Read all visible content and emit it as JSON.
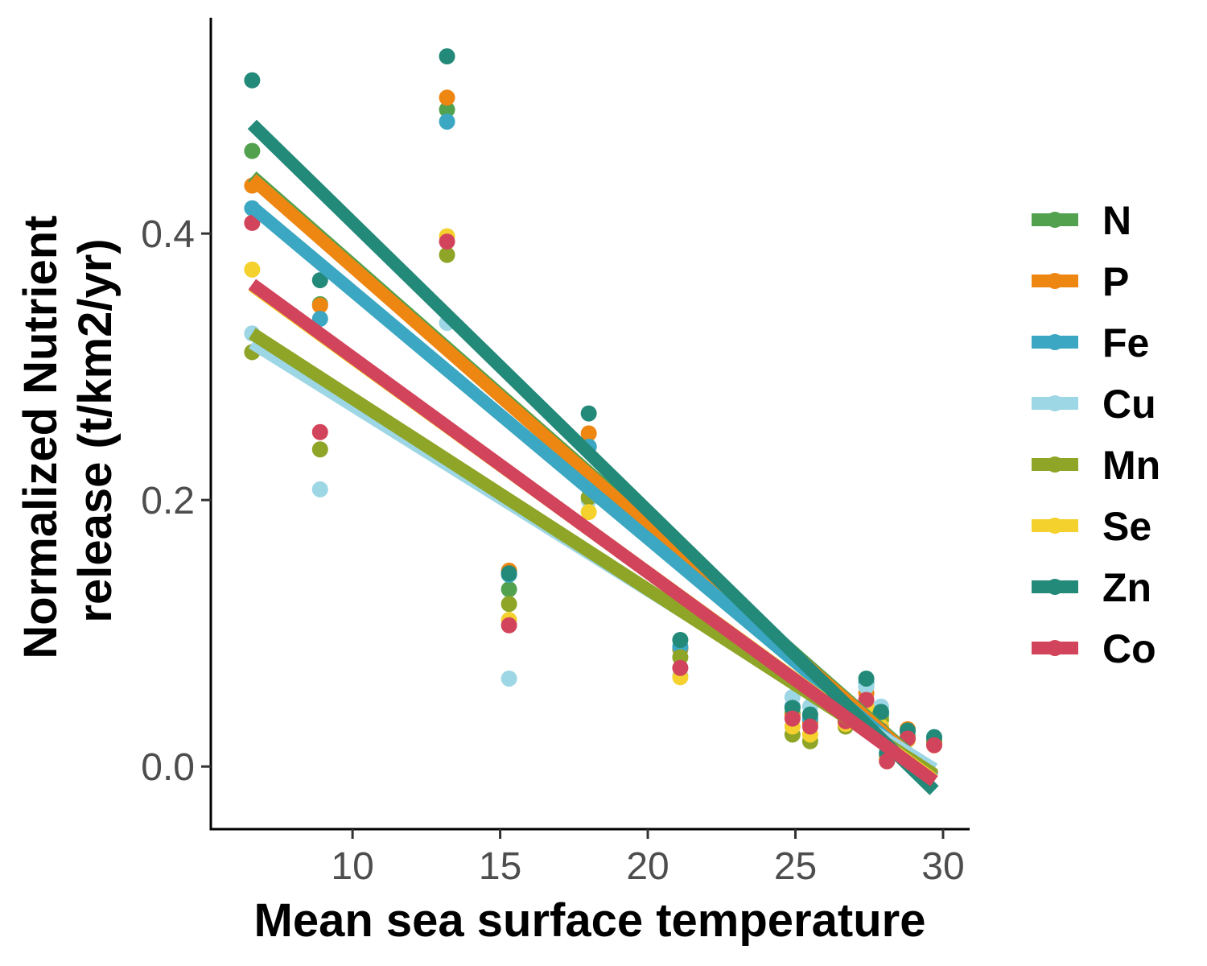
{
  "chart_data": {
    "type": "scatter",
    "title": "",
    "xlabel": "Mean sea surface temperature",
    "ylabel_lines": [
      "Normalized Nutrient",
      "release (t/km2/yr)"
    ],
    "xlim": [
      5.2,
      30.9
    ],
    "ylim": [
      -0.047,
      0.562
    ],
    "xticks": [
      10,
      15,
      20,
      25,
      30
    ],
    "yticks": [
      0.0,
      0.2,
      0.4
    ],
    "ytick_labels": [
      "0.0",
      "0.2",
      "0.4"
    ],
    "grid": false,
    "legend_position": "right",
    "fit_lines": "linear",
    "series": [
      {
        "name": "N",
        "color": "#52A14F",
        "points": [
          [
            6.6,
            0.462
          ],
          [
            8.9,
            0.347
          ],
          [
            13.2,
            0.493
          ],
          [
            15.3,
            0.133
          ],
          [
            18.0,
            0.24
          ],
          [
            21.1,
            0.088
          ],
          [
            24.9,
            0.04
          ],
          [
            25.5,
            0.034
          ],
          [
            26.7,
            0.035
          ],
          [
            27.4,
            0.06
          ],
          [
            27.9,
            0.038
          ],
          [
            28.1,
            0.008
          ],
          [
            28.8,
            0.024
          ],
          [
            29.7,
            0.02
          ]
        ],
        "fit": [
          [
            6.6,
            0.443
          ],
          [
            29.7,
            -0.007
          ]
        ]
      },
      {
        "name": "P",
        "color": "#EE8612",
        "points": [
          [
            6.6,
            0.436
          ],
          [
            8.9,
            0.346
          ],
          [
            13.2,
            0.502
          ],
          [
            15.3,
            0.147
          ],
          [
            18.0,
            0.25
          ],
          [
            21.1,
            0.089
          ],
          [
            24.9,
            0.038
          ],
          [
            25.5,
            0.033
          ],
          [
            26.7,
            0.035
          ],
          [
            27.4,
            0.055
          ],
          [
            27.9,
            0.03
          ],
          [
            28.1,
            0.006
          ],
          [
            28.8,
            0.028
          ],
          [
            29.7,
            0.018
          ]
        ],
        "fit": [
          [
            6.6,
            0.441
          ],
          [
            29.7,
            -0.008
          ]
        ]
      },
      {
        "name": "Fe",
        "color": "#3BA7C2",
        "points": [
          [
            6.6,
            0.419
          ],
          [
            8.9,
            0.336
          ],
          [
            13.2,
            0.484
          ],
          [
            15.3,
            0.144
          ],
          [
            18.0,
            0.24
          ],
          [
            21.1,
            0.09
          ],
          [
            24.9,
            0.045
          ],
          [
            25.5,
            0.036
          ],
          [
            26.7,
            0.045
          ],
          [
            27.4,
            0.063
          ],
          [
            27.9,
            0.04
          ],
          [
            28.1,
            0.01
          ],
          [
            28.8,
            0.026
          ],
          [
            29.7,
            0.022
          ]
        ],
        "fit": [
          [
            6.6,
            0.42
          ],
          [
            29.7,
            -0.009
          ]
        ]
      },
      {
        "name": "Cu",
        "color": "#9DD6E4",
        "points": [
          [
            6.6,
            0.325
          ],
          [
            8.9,
            0.208
          ],
          [
            13.2,
            0.333
          ],
          [
            15.3,
            0.066
          ],
          [
            18.0,
            0.2
          ],
          [
            21.1,
            0.068
          ],
          [
            24.9,
            0.052
          ],
          [
            25.5,
            0.045
          ],
          [
            26.7,
            0.048
          ],
          [
            27.4,
            0.06
          ],
          [
            27.9,
            0.045
          ],
          [
            28.1,
            0.012
          ],
          [
            28.8,
            0.025
          ],
          [
            29.7,
            0.022
          ]
        ],
        "fit": [
          [
            6.6,
            0.318
          ],
          [
            29.7,
            -0.002
          ]
        ]
      },
      {
        "name": "Mn",
        "color": "#8FA527",
        "points": [
          [
            6.6,
            0.311
          ],
          [
            8.9,
            0.238
          ],
          [
            13.2,
            0.384
          ],
          [
            15.3,
            0.122
          ],
          [
            18.0,
            0.202
          ],
          [
            21.1,
            0.082
          ],
          [
            24.9,
            0.024
          ],
          [
            25.5,
            0.019
          ],
          [
            26.7,
            0.03
          ],
          [
            27.4,
            0.04
          ],
          [
            27.9,
            0.035
          ],
          [
            28.1,
            0.004
          ],
          [
            28.8,
            0.022
          ],
          [
            29.7,
            0.018
          ]
        ],
        "fit": [
          [
            6.6,
            0.325
          ],
          [
            29.7,
            -0.006
          ]
        ]
      },
      {
        "name": "Se",
        "color": "#F4D12D",
        "points": [
          [
            6.6,
            0.373
          ],
          [
            8.9,
            0.29
          ],
          [
            13.2,
            0.398
          ],
          [
            15.3,
            0.11
          ],
          [
            18.0,
            0.191
          ],
          [
            21.1,
            0.067
          ],
          [
            24.9,
            0.03
          ],
          [
            25.5,
            0.024
          ],
          [
            26.7,
            0.032
          ],
          [
            27.4,
            0.045
          ],
          [
            27.9,
            0.03
          ],
          [
            28.1,
            0.005
          ],
          [
            28.8,
            0.02
          ],
          [
            29.7,
            0.016
          ]
        ],
        "fit": [
          [
            6.6,
            0.361
          ],
          [
            29.7,
            -0.01
          ]
        ]
      },
      {
        "name": "Zn",
        "color": "#238979",
        "points": [
          [
            6.6,
            0.515
          ],
          [
            8.9,
            0.365
          ],
          [
            13.2,
            0.533
          ],
          [
            15.3,
            0.145
          ],
          [
            18.0,
            0.265
          ],
          [
            21.1,
            0.095
          ],
          [
            24.9,
            0.044
          ],
          [
            25.5,
            0.039
          ],
          [
            26.7,
            0.048
          ],
          [
            27.4,
            0.066
          ],
          [
            27.9,
            0.041
          ],
          [
            28.1,
            0.01
          ],
          [
            28.8,
            0.027
          ],
          [
            29.7,
            0.022
          ]
        ],
        "fit": [
          [
            6.6,
            0.482
          ],
          [
            29.7,
            -0.018
          ]
        ]
      },
      {
        "name": "Co",
        "color": "#D2445B",
        "points": [
          [
            6.6,
            0.408
          ],
          [
            8.9,
            0.251
          ],
          [
            13.2,
            0.394
          ],
          [
            15.3,
            0.106
          ],
          [
            18.0,
            0.212
          ],
          [
            21.1,
            0.074
          ],
          [
            24.9,
            0.036
          ],
          [
            25.5,
            0.03
          ],
          [
            26.7,
            0.034
          ],
          [
            27.4,
            0.05
          ],
          [
            27.9,
            0.027
          ],
          [
            28.1,
            0.004
          ],
          [
            28.8,
            0.021
          ],
          [
            29.7,
            0.016
          ]
        ],
        "fit": [
          [
            6.6,
            0.362
          ],
          [
            29.7,
            -0.011
          ]
        ]
      }
    ]
  }
}
